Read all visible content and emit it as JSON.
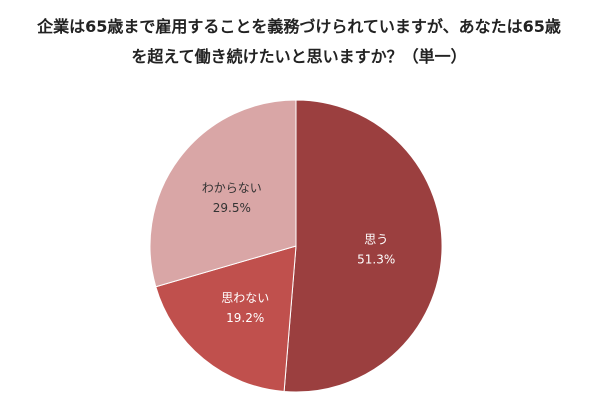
{
  "chart_data": {
    "type": "pie",
    "title_lines": [
      "企業は65歳まで雇用することを義務づけられていますが、あなたは65歳",
      "を超えて働き続けたいと思いますか？（単一）"
    ],
    "slices": [
      {
        "label": "思う",
        "value": 51.3,
        "value_text": "51.3%",
        "color": "#9b3f3f",
        "label_color": "#ffffff"
      },
      {
        "label": "思わない",
        "value": 19.2,
        "value_text": "19.2%",
        "color": "#c0504d",
        "label_color": "#ffffff"
      },
      {
        "label": "わからない",
        "value": 29.5,
        "value_text": "29.5%",
        "color": "#d9a6a6",
        "label_color": "#333333"
      }
    ],
    "start_angle_deg": -90,
    "direction": "clockwise",
    "legend": "none"
  }
}
